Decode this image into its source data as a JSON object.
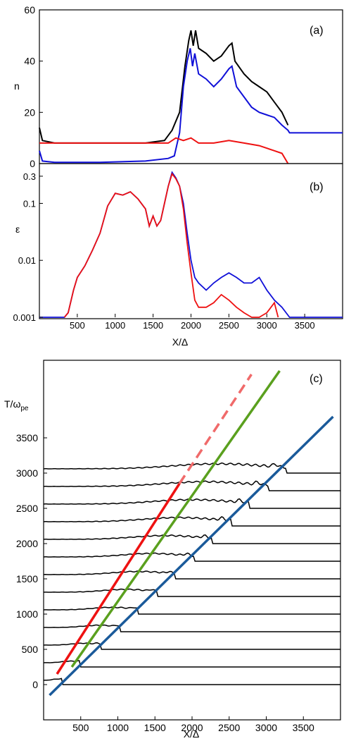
{
  "colors": {
    "black": "#000000",
    "blue": "#1010d8",
    "red": "#ee1111",
    "dashed_red": "#f06a6a",
    "green": "#5aa01e",
    "steel_blue": "#1a5a9a"
  },
  "chart_data": [
    {
      "id": "a",
      "type": "line",
      "panel_label": "(a)",
      "ylabel": "n",
      "xlim": [
        0,
        4000
      ],
      "ylim": [
        0,
        60
      ],
      "yticks": [
        0,
        20,
        40,
        60
      ],
      "series": [
        {
          "color": "black",
          "values": [
            [
              0,
              14
            ],
            [
              40,
              9
            ],
            [
              200,
              8
            ],
            [
              600,
              8
            ],
            [
              1000,
              8
            ],
            [
              1400,
              8
            ],
            [
              1650,
              9
            ],
            [
              1750,
              13
            ],
            [
              1850,
              20
            ],
            [
              1920,
              38
            ],
            [
              1970,
              48
            ],
            [
              2000,
              52
            ],
            [
              2030,
              46
            ],
            [
              2060,
              52
            ],
            [
              2100,
              45
            ],
            [
              2200,
              43
            ],
            [
              2300,
              40
            ],
            [
              2400,
              42
            ],
            [
              2500,
              46
            ],
            [
              2540,
              47
            ],
            [
              2580,
              40
            ],
            [
              2700,
              35
            ],
            [
              2800,
              32
            ],
            [
              2900,
              30
            ],
            [
              3000,
              28
            ],
            [
              3100,
              24
            ],
            [
              3200,
              20
            ],
            [
              3280,
              15
            ]
          ]
        },
        {
          "color": "blue",
          "values": [
            [
              0,
              5
            ],
            [
              40,
              1
            ],
            [
              200,
              0.5
            ],
            [
              800,
              0.5
            ],
            [
              1400,
              1
            ],
            [
              1700,
              2
            ],
            [
              1780,
              3
            ],
            [
              1850,
              12
            ],
            [
              1900,
              30
            ],
            [
              1950,
              40
            ],
            [
              1990,
              45
            ],
            [
              2020,
              38
            ],
            [
              2050,
              43
            ],
            [
              2100,
              35
            ],
            [
              2200,
              33
            ],
            [
              2300,
              30
            ],
            [
              2400,
              33
            ],
            [
              2500,
              37
            ],
            [
              2540,
              38
            ],
            [
              2600,
              30
            ],
            [
              2700,
              26
            ],
            [
              2800,
              22
            ],
            [
              2900,
              20
            ],
            [
              3000,
              19
            ],
            [
              3100,
              18
            ],
            [
              3200,
              15
            ],
            [
              3280,
              13
            ],
            [
              3300,
              12
            ],
            [
              4000,
              12
            ]
          ]
        },
        {
          "color": "red",
          "values": [
            [
              0,
              8
            ],
            [
              200,
              8
            ],
            [
              1000,
              8
            ],
            [
              1400,
              8
            ],
            [
              1700,
              8
            ],
            [
              1800,
              10
            ],
            [
              1900,
              9
            ],
            [
              2000,
              10
            ],
            [
              2100,
              8
            ],
            [
              2300,
              8
            ],
            [
              2500,
              9
            ],
            [
              2700,
              8
            ],
            [
              2900,
              7
            ],
            [
              3000,
              6
            ],
            [
              3100,
              5
            ],
            [
              3200,
              4
            ],
            [
              3280,
              0
            ]
          ]
        }
      ]
    },
    {
      "id": "b",
      "type": "line",
      "panel_label": "(b)",
      "ylabel": "ε",
      "xlabel": "X/Δ",
      "xlim": [
        0,
        4000
      ],
      "ylim": [
        0.001,
        0.5
      ],
      "yscale": "log",
      "yticks": [
        0.001,
        0.01,
        0.1,
        0.3
      ],
      "ytick_labels": [
        "0.001",
        "0.01",
        "0.1",
        "0.3"
      ],
      "xticks": [
        500,
        1000,
        1500,
        2000,
        2500,
        3000,
        3500
      ],
      "series": [
        {
          "color": "blue",
          "values": [
            [
              0,
              0.001
            ],
            [
              330,
              0.001
            ],
            [
              380,
              0.0012
            ],
            [
              450,
              0.003
            ],
            [
              500,
              0.005
            ],
            [
              600,
              0.008
            ],
            [
              700,
              0.015
            ],
            [
              800,
              0.03
            ],
            [
              900,
              0.09
            ],
            [
              1000,
              0.15
            ],
            [
              1100,
              0.14
            ],
            [
              1200,
              0.16
            ],
            [
              1300,
              0.12
            ],
            [
              1400,
              0.08
            ],
            [
              1450,
              0.04
            ],
            [
              1500,
              0.06
            ],
            [
              1550,
              0.04
            ],
            [
              1600,
              0.05
            ],
            [
              1650,
              0.1
            ],
            [
              1700,
              0.2
            ],
            [
              1750,
              0.35
            ],
            [
              1800,
              0.28
            ],
            [
              1850,
              0.2
            ],
            [
              1900,
              0.1
            ],
            [
              1950,
              0.03
            ],
            [
              2000,
              0.01
            ],
            [
              2050,
              0.005
            ],
            [
              2100,
              0.004
            ],
            [
              2200,
              0.003
            ],
            [
              2300,
              0.004
            ],
            [
              2400,
              0.005
            ],
            [
              2500,
              0.006
            ],
            [
              2600,
              0.005
            ],
            [
              2700,
              0.004
            ],
            [
              2800,
              0.004
            ],
            [
              2900,
              0.005
            ],
            [
              3000,
              0.003
            ],
            [
              3100,
              0.002
            ],
            [
              3200,
              0.0015
            ],
            [
              3300,
              0.001
            ],
            [
              4000,
              0.001
            ]
          ]
        },
        {
          "color": "red",
          "values": [
            [
              330,
              0.001
            ],
            [
              380,
              0.0012
            ],
            [
              450,
              0.003
            ],
            [
              500,
              0.005
            ],
            [
              600,
              0.008
            ],
            [
              700,
              0.015
            ],
            [
              800,
              0.03
            ],
            [
              900,
              0.09
            ],
            [
              1000,
              0.15
            ],
            [
              1100,
              0.14
            ],
            [
              1200,
              0.16
            ],
            [
              1300,
              0.12
            ],
            [
              1400,
              0.08
            ],
            [
              1450,
              0.04
            ],
            [
              1500,
              0.06
            ],
            [
              1550,
              0.04
            ],
            [
              1600,
              0.05
            ],
            [
              1650,
              0.1
            ],
            [
              1700,
              0.2
            ],
            [
              1750,
              0.33
            ],
            [
              1800,
              0.27
            ],
            [
              1850,
              0.2
            ],
            [
              1900,
              0.08
            ],
            [
              1950,
              0.02
            ],
            [
              2000,
              0.006
            ],
            [
              2050,
              0.002
            ],
            [
              2100,
              0.0015
            ],
            [
              2200,
              0.0015
            ],
            [
              2300,
              0.0018
            ],
            [
              2400,
              0.0025
            ],
            [
              2500,
              0.002
            ],
            [
              2600,
              0.0015
            ],
            [
              2700,
              0.0012
            ],
            [
              2800,
              0.001
            ],
            [
              2900,
              0.001
            ],
            [
              3000,
              0.0012
            ],
            [
              3100,
              0.0018
            ],
            [
              3150,
              0.001
            ]
          ]
        }
      ]
    },
    {
      "id": "c",
      "type": "line",
      "panel_label": "(c)",
      "ylabel": "T/ω",
      "ylabel_sub": "pe",
      "xlabel": "X/Δ",
      "xlim": [
        0,
        4000
      ],
      "ylim": [
        -500,
        4600
      ],
      "xticks": [
        500,
        1000,
        1500,
        2000,
        2500,
        3000,
        3500
      ],
      "yticks": [
        0,
        500,
        1000,
        1500,
        2000,
        2500,
        3000,
        3500
      ],
      "stacked_profiles": {
        "time_step": 250,
        "times": [
          0,
          250,
          500,
          750,
          1000,
          1250,
          1500,
          1750,
          2000,
          2250,
          2500,
          2750,
          3000
        ],
        "shock_positions": [
          260,
          500,
          770,
          1040,
          1280,
          1530,
          1780,
          2030,
          2280,
          2530,
          2780,
          3030,
          3280
        ]
      },
      "fit_lines": [
        {
          "color": "red",
          "style": "solid",
          "points": [
            [
              180,
              150
            ],
            [
              1830,
              2850
            ]
          ]
        },
        {
          "color": "dashed_red",
          "style": "dashed",
          "points": [
            [
              1830,
              2850
            ],
            [
              2800,
              4400
            ]
          ]
        },
        {
          "color": "green",
          "style": "solid",
          "points": [
            [
              380,
              250
            ],
            [
              3180,
              4450
            ]
          ]
        },
        {
          "color": "steel_blue",
          "style": "solid",
          "points": [
            [
              80,
              -150
            ],
            [
              3900,
              3800
            ]
          ]
        }
      ]
    }
  ]
}
